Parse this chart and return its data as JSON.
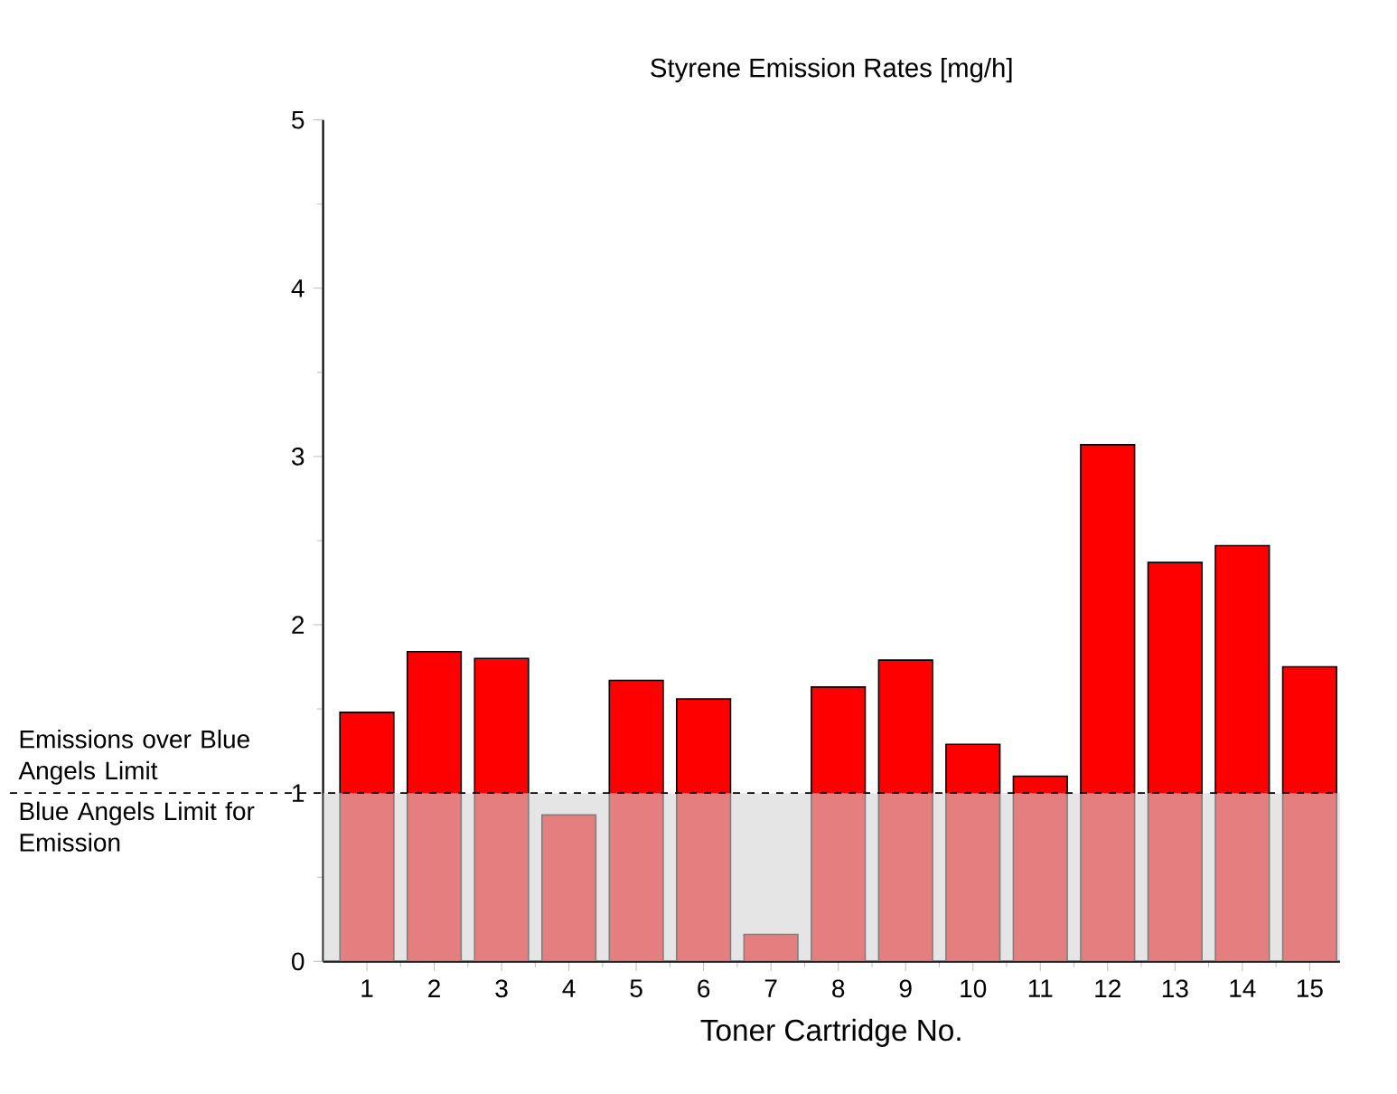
{
  "chart_data": {
    "type": "bar",
    "title": "Styrene Emission Rates [mg/h]",
    "xlabel": "Toner Cartridge No.",
    "categories": [
      "1",
      "2",
      "3",
      "4",
      "5",
      "6",
      "7",
      "8",
      "9",
      "10",
      "11",
      "12",
      "13",
      "14",
      "15"
    ],
    "values": [
      1.48,
      1.84,
      1.8,
      0.87,
      1.67,
      1.56,
      0.16,
      1.63,
      1.79,
      1.29,
      1.1,
      3.07,
      2.37,
      2.47,
      1.75
    ],
    "color": "#ff0000",
    "ylim": [
      0,
      5
    ],
    "yticks": [
      0,
      1,
      2,
      3,
      4,
      5
    ],
    "ref_lines": [
      {
        "axis": "y",
        "value": 1,
        "label": "Emissions over Blue Angels Limit",
        "line_style": "dashed",
        "color": "#000000"
      }
    ],
    "bands": [
      {
        "axis": "y",
        "from": 0,
        "to": 1,
        "label": "Blue Angels Limit for Emission",
        "color": "#d3d3d3"
      }
    ]
  }
}
